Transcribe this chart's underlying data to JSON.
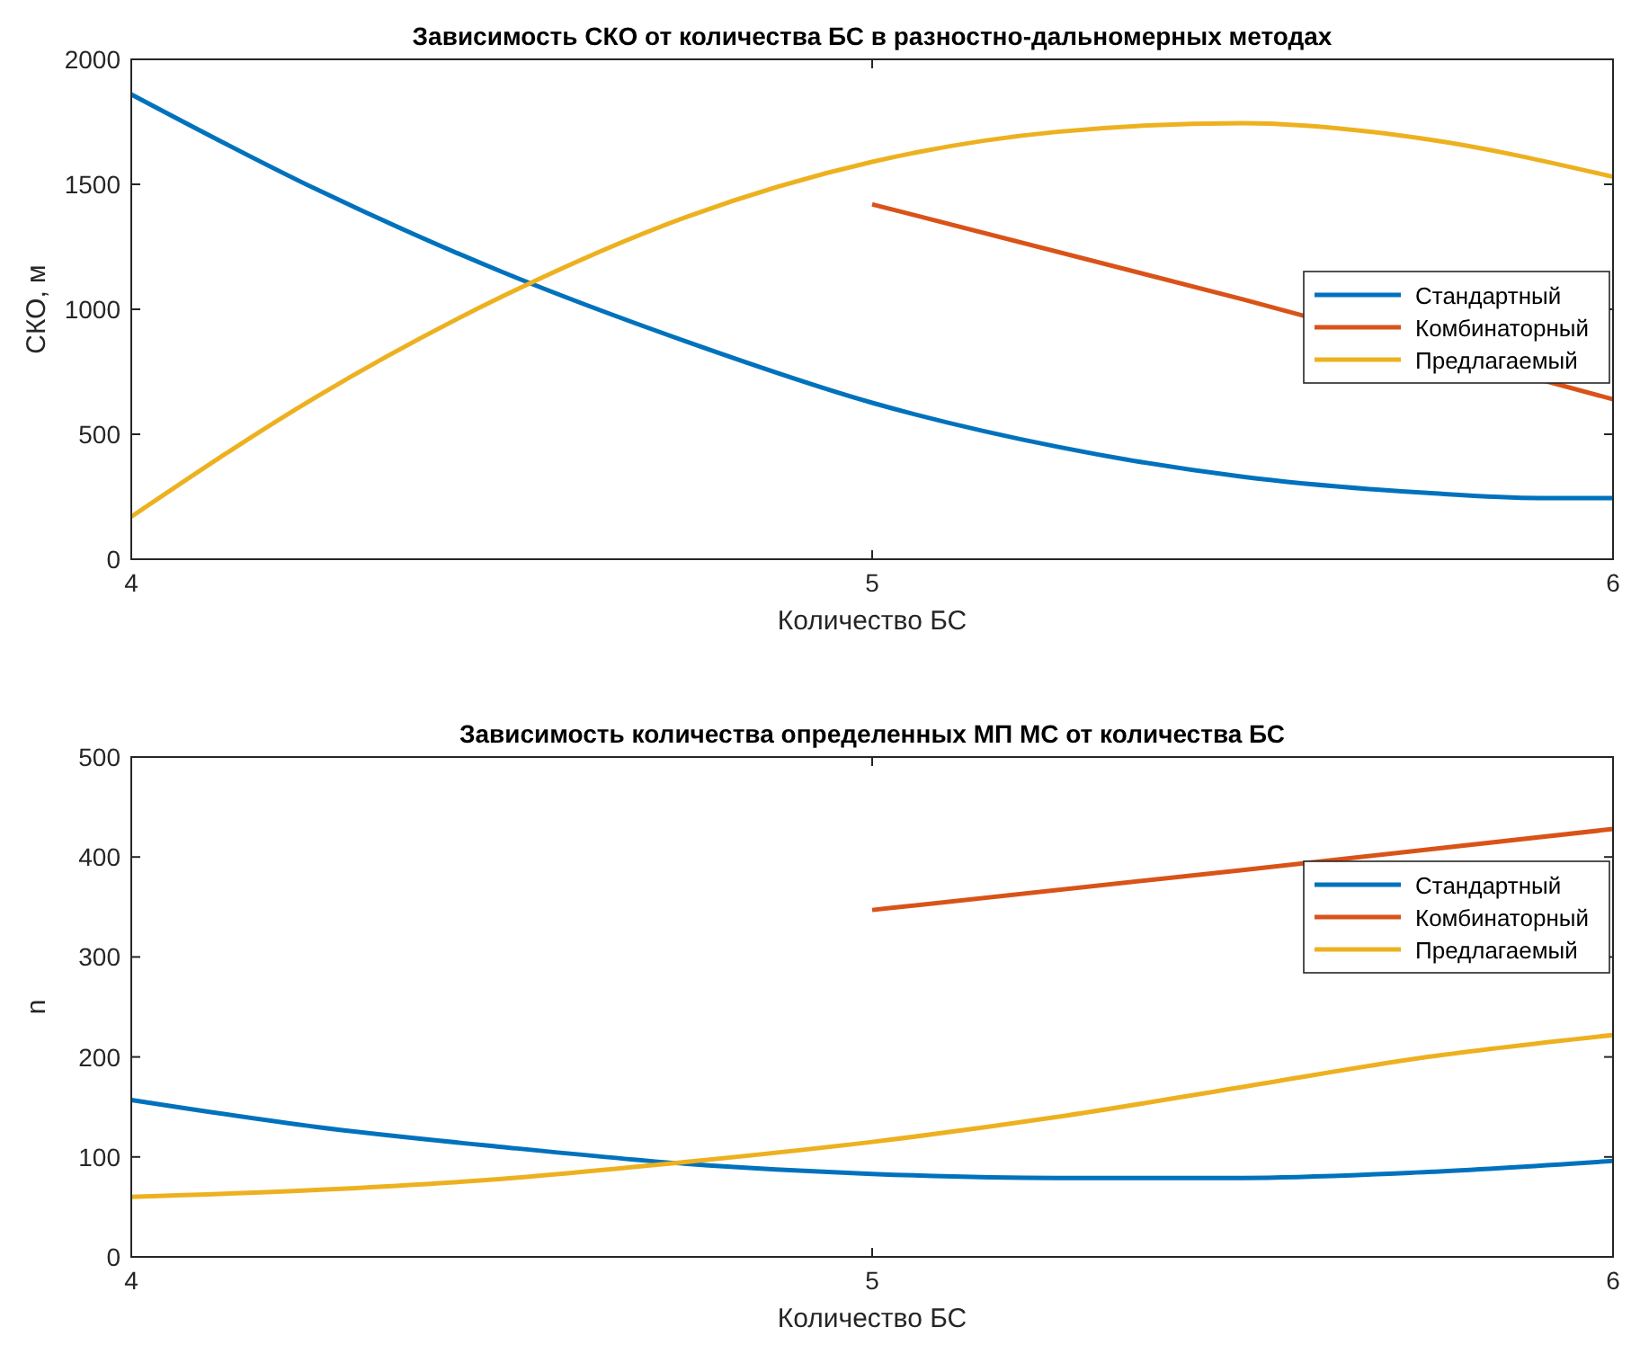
{
  "chart_data": [
    {
      "type": "line",
      "title": "Зависимость СКО от количества БС в разностно-дальномерных методах",
      "xlabel": "Количество БС",
      "ylabel": "СКО, м",
      "xlim": [
        4,
        6
      ],
      "xticks": [
        4,
        5,
        6
      ],
      "ylim": [
        0,
        2000
      ],
      "yticks": [
        0,
        500,
        1000,
        1500,
        2000
      ],
      "legend": "right",
      "marker": "none",
      "line_style": "solid",
      "series": [
        {
          "name": "Стандартный",
          "color": "#0072bd",
          "x": [
            4,
            4.25,
            4.5,
            4.75,
            5,
            5.25,
            5.5,
            5.75,
            5.9,
            6
          ],
          "values": [
            1860,
            1480,
            1150,
            870,
            626,
            450,
            330,
            265,
            245,
            245
          ]
        },
        {
          "name": "Комбинаторный",
          "color": "#d95319",
          "x": [
            5,
            5.5,
            6
          ],
          "values": [
            1420,
            1040,
            640
          ]
        },
        {
          "name": "Предлагаемый",
          "color": "#edb120",
          "x": [
            4,
            4.25,
            4.5,
            4.75,
            5,
            5.25,
            5.5,
            5.75,
            6
          ],
          "values": [
            170,
            650,
            1050,
            1370,
            1590,
            1710,
            1745,
            1680,
            1530
          ]
        }
      ]
    },
    {
      "type": "line",
      "title": "Зависимость количества определенных МП МС от количества БС",
      "xlabel": "Количество БС",
      "ylabel": "n",
      "xlim": [
        4,
        6
      ],
      "xticks": [
        4,
        5,
        6
      ],
      "ylim": [
        0,
        500
      ],
      "yticks": [
        0,
        100,
        200,
        300,
        400,
        500
      ],
      "legend": "top right",
      "marker": "none",
      "line_style": "solid",
      "series": [
        {
          "name": "Стандартный",
          "color": "#0072bd",
          "x": [
            4,
            4.25,
            4.5,
            4.75,
            5,
            5.25,
            5.5,
            5.75,
            6
          ],
          "values": [
            157,
            130,
            110,
            93,
            83,
            79,
            79,
            85,
            96
          ]
        },
        {
          "name": "Комбинаторный",
          "color": "#d95319",
          "x": [
            5,
            5.5,
            6
          ],
          "values": [
            347,
            387,
            428
          ]
        },
        {
          "name": "Предлагаемый",
          "color": "#edb120",
          "x": [
            4,
            4.25,
            4.5,
            4.75,
            5,
            5.25,
            5.5,
            5.75,
            6
          ],
          "values": [
            60,
            67,
            78,
            95,
            115,
            140,
            170,
            200,
            222
          ]
        }
      ]
    }
  ]
}
